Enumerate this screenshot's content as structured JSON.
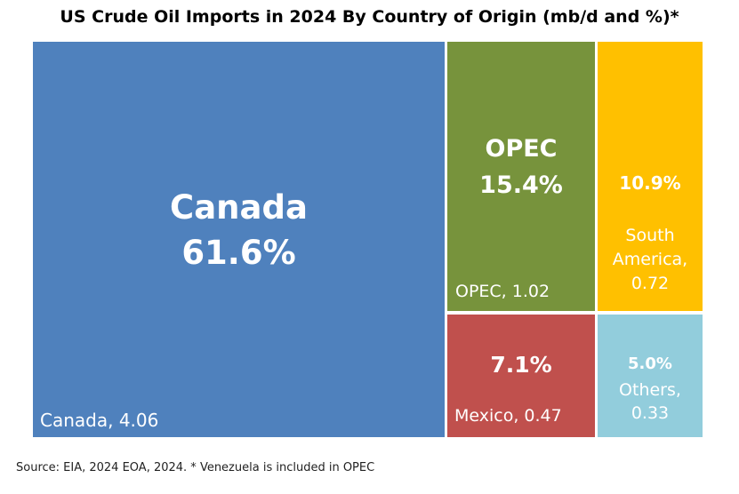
{
  "chart_data": {
    "type": "treemap",
    "title": "US Crude Oil Imports in 2024 By Country of Origin (mb/d and %)*",
    "source": "Source: EIA, 2024  EOA, 2024. * Venezuela is included in OPEC",
    "tiles": [
      {
        "name": "Canada",
        "value": 4.06,
        "percent": "61.6%",
        "heading": "Canada",
        "label": "Canada, 4.06",
        "color": "#4f81bd"
      },
      {
        "name": "OPEC",
        "value": 1.02,
        "percent": "15.4%",
        "heading": "OPEC",
        "label": "OPEC, 1.02",
        "color": "#77933c"
      },
      {
        "name": "South America",
        "value": 0.72,
        "percent": "10.9%",
        "heading": "",
        "label_lines": [
          "South",
          "America,",
          "0.72"
        ],
        "color": "#ffc000"
      },
      {
        "name": "Mexico",
        "value": 0.47,
        "percent": "7.1%",
        "heading": "",
        "label": "Mexico, 0.47",
        "color": "#c0504d"
      },
      {
        "name": "Others",
        "value": 0.33,
        "percent": "5.0%",
        "heading": "",
        "label_lines": [
          "Others,",
          "0.33"
        ],
        "color": "#92cddc"
      }
    ]
  }
}
